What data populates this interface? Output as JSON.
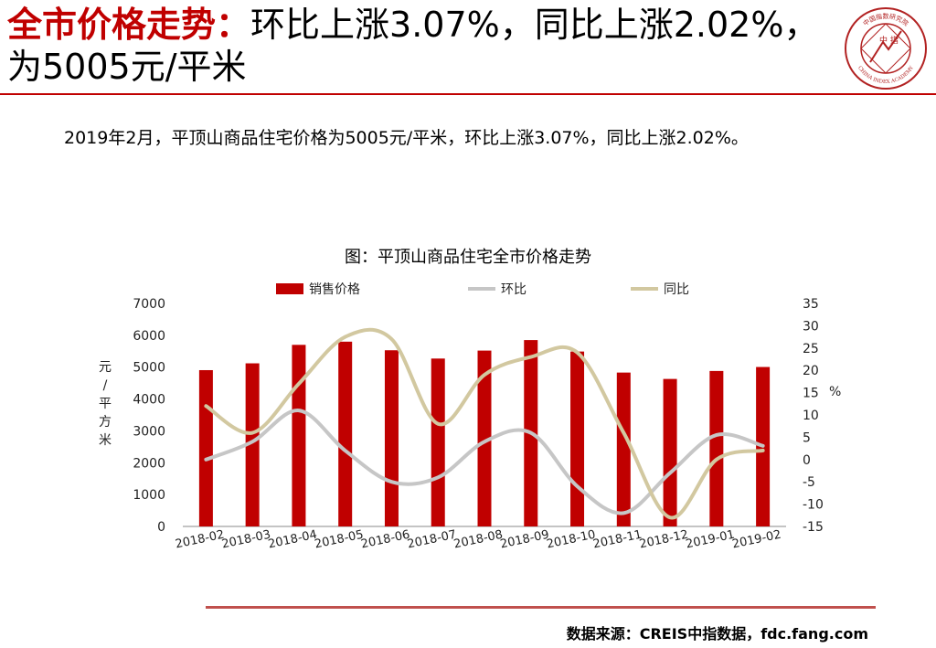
{
  "header": {
    "title_highlight": "全市价格走势：",
    "title_rest": "环比上涨3.07%，同比上涨2.02%，为5005元/平米"
  },
  "summary": "2019年2月，平顶山商品住宅价格为5005元/平米，环比上涨3.07%，同比上涨2.02%。",
  "logo": {
    "icon": "china-index-academy-seal",
    "text_top": "中国指数研究院",
    "text_center": "中 指",
    "text_bottom": "CHINA INDEX ACADEMY"
  },
  "footer": {
    "source": "数据来源：CREIS中指数据，fdc.fang.com"
  },
  "colors": {
    "accent": "#c00000",
    "bar": "#c00000",
    "mom_line": "#c6c6c6",
    "yoy_line": "#d2c8a0",
    "footer_rule": "#c0504d"
  },
  "chart_data": {
    "type": "bar+line",
    "title": "图：平顶山商品住宅全市价格走势",
    "categories": [
      "2018-02",
      "2018-03",
      "2018-04",
      "2018-05",
      "2018-06",
      "2018-07",
      "2018-08",
      "2018-09",
      "2018-10",
      "2018-11",
      "2018-12",
      "2019-01",
      "2019-02"
    ],
    "series": [
      {
        "name": "销售价格",
        "type": "bar",
        "axis": "left",
        "values": [
          4906,
          5120,
          5700,
          5800,
          5530,
          5270,
          5520,
          5850,
          5490,
          4830,
          4630,
          4880,
          5005
        ]
      },
      {
        "name": "环比",
        "type": "line",
        "axis": "right",
        "values": [
          0,
          4,
          11,
          2,
          -5,
          -4,
          4,
          6,
          -6,
          -12,
          -3,
          5.5,
          3.07
        ]
      },
      {
        "name": "同比",
        "type": "line",
        "axis": "right",
        "values": [
          12,
          6,
          17,
          27.5,
          27,
          8,
          19,
          23,
          24,
          6,
          -13,
          0,
          2.02
        ]
      }
    ],
    "ylabel_left": "元/平方米",
    "ylabel_right": "%",
    "ylim_left": [
      0,
      7000
    ],
    "ylim_right": [
      -15,
      35
    ],
    "yticks_left": [
      "0",
      "1000",
      "2000",
      "3000",
      "4000",
      "5000",
      "6000",
      "7000"
    ],
    "yticks_right": [
      "-15",
      "-10",
      "-5",
      "0",
      "5",
      "10",
      "15",
      "20",
      "25",
      "30",
      "35"
    ],
    "legend_position": "top",
    "grid": false
  }
}
